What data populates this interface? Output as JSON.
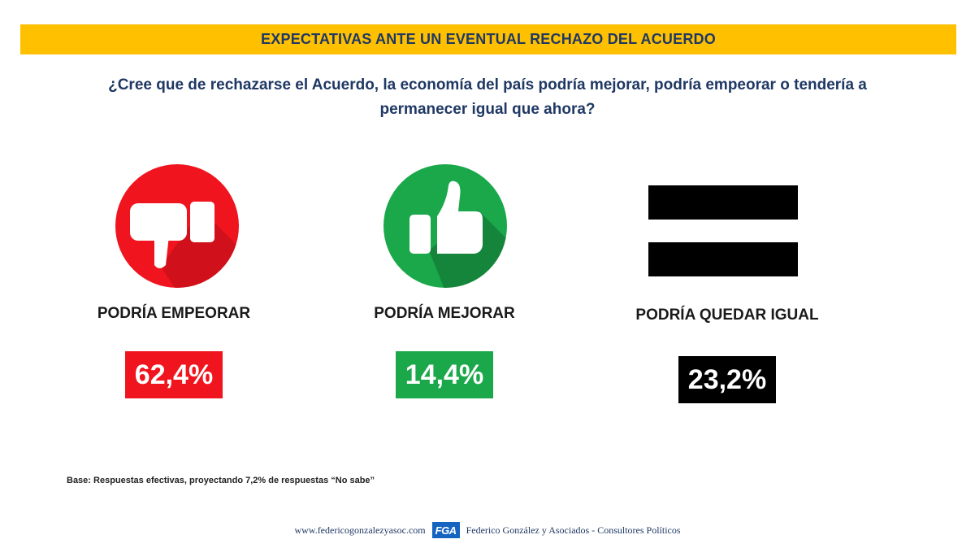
{
  "header": {
    "banner_title": "EXPECTATIVAS ANTE UN EVENTUAL RECHAZO DEL ACUERDO",
    "question": "¿Cree que de rechazarse el Acuerdo, la economía del país podría mejorar, podría empeorar o tendería a permanecer igual que ahora?"
  },
  "chart_data": {
    "type": "bar",
    "categories": [
      "PODRÍA EMPEORAR",
      "PODRÍA MEJORAR",
      "PODRÍA QUEDAR IGUAL"
    ],
    "values": [
      62.4,
      14.4,
      23.2
    ],
    "value_labels": [
      "62,4%",
      "14,4%",
      "23,2%"
    ],
    "colors": [
      "#F0141E",
      "#1BA84A",
      "#000000"
    ],
    "icons": [
      "thumbs-down-icon",
      "thumbs-up-icon",
      "equals-icon"
    ],
    "title": "EXPECTATIVAS ANTE UN EVENTUAL RECHAZO DEL ACUERDO"
  },
  "notes": {
    "base": "Base: Respuestas efectivas, proyectando  7,2% de  respuestas “No sabe”"
  },
  "footer": {
    "url": "www.federicogonzalezyasoc.com",
    "logo_text": "FGA",
    "company": "Federico González y Asociados - Consultores Políticos"
  },
  "colors": {
    "banner": "#FFC000",
    "title_text": "#1F3864",
    "red": "#F0141E",
    "green": "#1BA84A",
    "black": "#000000"
  }
}
